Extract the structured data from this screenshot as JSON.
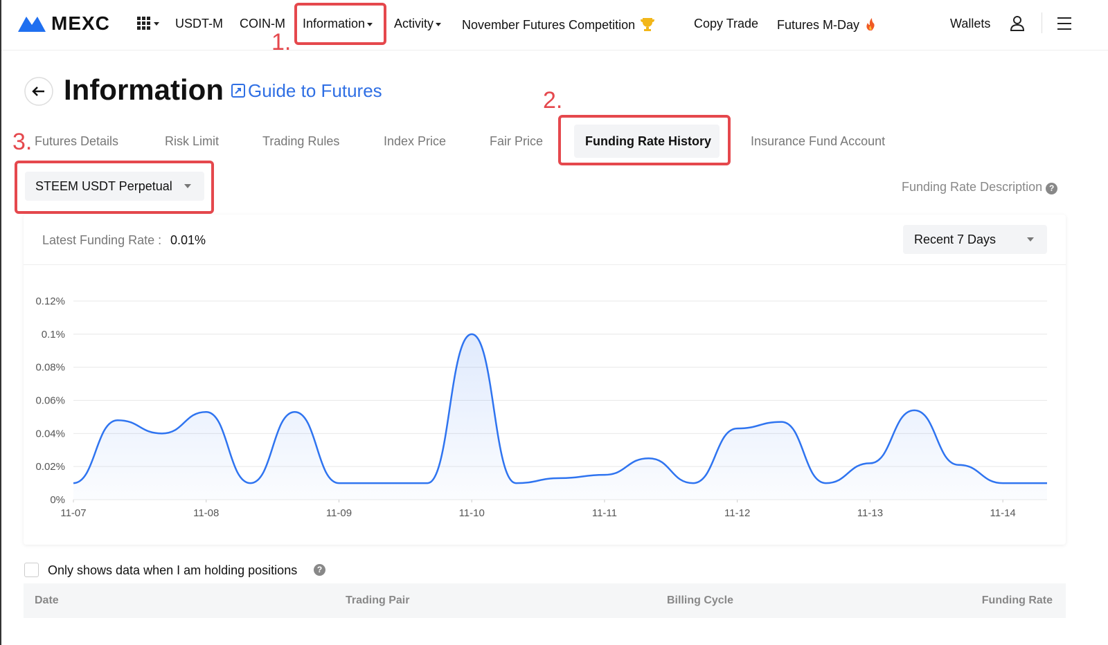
{
  "nav": {
    "logo": "MEXC",
    "items": [
      "USDT-M",
      "COIN-M",
      "Information",
      "Activity",
      "November Futures Competition",
      "Copy Trade",
      "Futures M-Day"
    ],
    "wallets": "Wallets"
  },
  "header": {
    "title": "Information",
    "guide": "Guide to Futures"
  },
  "annotations": [
    "1.",
    "2.",
    "3."
  ],
  "tabs": [
    "Futures Details",
    "Risk Limit",
    "Trading Rules",
    "Index Price",
    "Fair Price",
    "Funding Rate History",
    "Insurance Fund Account"
  ],
  "active_tab": 5,
  "contract": "STEEM USDT Perpetual",
  "description_link": "Funding Rate Description",
  "latest_label": "Latest Funding Rate :",
  "latest_value": "0.01%",
  "range": "Recent 7 Days",
  "chart_data": {
    "type": "line",
    "x": [
      0,
      0.333,
      0.667,
      1,
      1.333,
      1.667,
      2,
      2.333,
      2.667,
      3,
      3.333,
      3.667,
      4,
      4.333,
      4.667,
      5,
      5.333,
      5.667,
      6,
      6.333,
      6.667,
      7,
      7.333
    ],
    "series": [
      {
        "name": "Funding Rate",
        "color": "#2f74f0",
        "values": [
          0.01,
          0.048,
          0.04,
          0.053,
          0.01,
          0.053,
          0.01,
          0.01,
          0.01,
          0.1,
          0.01,
          0.013,
          0.015,
          0.025,
          0.01,
          0.043,
          0.047,
          0.01,
          0.022,
          0.054,
          0.021,
          0.01,
          0.01
        ]
      }
    ],
    "xlim": [
      0,
      7.333
    ],
    "xticks": [
      {
        "value": 0,
        "label": "11-07"
      },
      {
        "value": 1,
        "label": "11-08"
      },
      {
        "value": 2,
        "label": "11-09"
      },
      {
        "value": 3,
        "label": "11-10"
      },
      {
        "value": 4,
        "label": "11-11"
      },
      {
        "value": 5,
        "label": "11-12"
      },
      {
        "value": 6,
        "label": "11-13"
      },
      {
        "value": 7,
        "label": "11-14"
      }
    ],
    "ylim": [
      0,
      0.12
    ],
    "yticks": [
      {
        "value": 0,
        "label": "0%"
      },
      {
        "value": 0.02,
        "label": "0.02%"
      },
      {
        "value": 0.04,
        "label": "0.04%"
      },
      {
        "value": 0.06,
        "label": "0.06%"
      },
      {
        "value": 0.08,
        "label": "0.08%"
      },
      {
        "value": 0.1,
        "label": "0.1%"
      },
      {
        "value": 0.12,
        "label": "0.12%"
      }
    ],
    "grid": true
  },
  "checkbox_label": "Only shows data when I am holding positions",
  "table": {
    "columns": [
      "Date",
      "Trading Pair",
      "Billing Cycle",
      "Funding Rate"
    ]
  }
}
